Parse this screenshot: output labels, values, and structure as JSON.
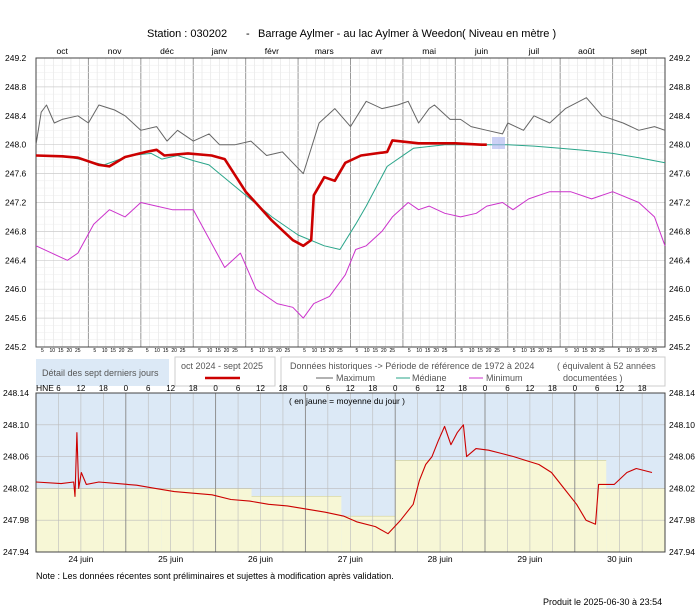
{
  "header": {
    "station": "Station : 030202",
    "dash": "-",
    "name": "Barrage Aylmer - au lac Aylmer à Weedon",
    "unit": "( Niveau en mètre )"
  },
  "legend": {
    "left_box": "Détail des sept derniers jours",
    "current_label": "oct 2024 - sept 2025",
    "historic_label": "Données historiques -> Période de référence  de 1972 à 2024",
    "equivalent_label": "( équivalent à 52 années documentées )",
    "series": [
      {
        "key": "max",
        "label": "Maximum",
        "color": "#666666"
      },
      {
        "key": "median",
        "label": "Médiane",
        "color": "#2aa58a"
      },
      {
        "key": "min",
        "label": "Minimum",
        "color": "#cc33cc"
      }
    ]
  },
  "note": "Note : Les données récentes sont préliminaires et sujettes à modification après validation.",
  "footer": "Produit le 2025-06-30 à 23:54",
  "chart_data": [
    {
      "type": "line",
      "ylim": [
        245.2,
        249.2
      ],
      "y_ticks": [
        "249.2",
        "248.8",
        "248.4",
        "248.0",
        "247.6",
        "247.2",
        "246.8",
        "246.4",
        "246.0",
        "245.6",
        "245.2"
      ],
      "months": [
        "oct",
        "nov",
        "déc",
        "janv",
        "févr",
        "mars",
        "avr",
        "mai",
        "juin",
        "juil",
        "août",
        "sept"
      ],
      "minor_day_labels": [
        "5",
        "10",
        "15",
        "20",
        "25"
      ],
      "series": [
        {
          "name": "oct 2024 - sept 2025",
          "color": "#cc0000",
          "points": [
            [
              0,
              247.85
            ],
            [
              0.5,
              247.84
            ],
            [
              0.8,
              247.82
            ],
            [
              1.2,
              247.72
            ],
            [
              1.4,
              247.7
            ],
            [
              1.7,
              247.83
            ],
            [
              2.1,
              247.9
            ],
            [
              2.3,
              247.93
            ],
            [
              2.45,
              247.85
            ],
            [
              2.9,
              247.88
            ],
            [
              3.35,
              247.85
            ],
            [
              3.6,
              247.8
            ],
            [
              4.0,
              247.35
            ],
            [
              4.5,
              246.95
            ],
            [
              4.9,
              246.68
            ],
            [
              5.1,
              246.6
            ],
            [
              5.25,
              246.68
            ],
            [
              5.3,
              247.3
            ],
            [
              5.5,
              247.55
            ],
            [
              5.7,
              247.5
            ],
            [
              5.9,
              247.75
            ],
            [
              6.2,
              247.85
            ],
            [
              6.7,
              247.9
            ],
            [
              6.8,
              248.06
            ],
            [
              7.3,
              248.02
            ],
            [
              8.0,
              248.02
            ],
            [
              8.5,
              248.0
            ],
            [
              8.6,
              248.0
            ]
          ]
        },
        {
          "name": "Maximum",
          "color": "#666666",
          "points": [
            [
              0,
              248.0
            ],
            [
              0.1,
              248.45
            ],
            [
              0.2,
              248.55
            ],
            [
              0.35,
              248.3
            ],
            [
              0.5,
              248.35
            ],
            [
              0.8,
              248.4
            ],
            [
              1.0,
              248.3
            ],
            [
              1.2,
              248.55
            ],
            [
              1.5,
              248.48
            ],
            [
              1.7,
              248.4
            ],
            [
              2.0,
              248.2
            ],
            [
              2.3,
              248.25
            ],
            [
              2.5,
              248.05
            ],
            [
              2.7,
              248.2
            ],
            [
              3.0,
              248.05
            ],
            [
              3.3,
              248.15
            ],
            [
              3.5,
              248.0
            ],
            [
              3.8,
              248.0
            ],
            [
              4.1,
              248.05
            ],
            [
              4.4,
              247.85
            ],
            [
              4.7,
              247.9
            ],
            [
              4.9,
              247.75
            ],
            [
              5.1,
              247.6
            ],
            [
              5.4,
              248.3
            ],
            [
              5.7,
              248.5
            ],
            [
              6.0,
              248.25
            ],
            [
              6.3,
              248.6
            ],
            [
              6.6,
              248.5
            ],
            [
              6.9,
              248.55
            ],
            [
              7.1,
              248.6
            ],
            [
              7.3,
              248.3
            ],
            [
              7.5,
              248.5
            ],
            [
              7.6,
              248.55
            ],
            [
              7.9,
              248.35
            ],
            [
              8.1,
              248.35
            ],
            [
              8.3,
              248.25
            ],
            [
              8.6,
              248.2
            ],
            [
              8.9,
              248.15
            ],
            [
              9.0,
              248.3
            ],
            [
              9.3,
              248.2
            ],
            [
              9.5,
              248.4
            ],
            [
              9.8,
              248.3
            ],
            [
              10.1,
              248.5
            ],
            [
              10.5,
              248.65
            ],
            [
              10.8,
              248.4
            ],
            [
              11.2,
              248.3
            ],
            [
              11.5,
              248.2
            ],
            [
              11.8,
              248.25
            ],
            [
              12.0,
              248.2
            ]
          ]
        },
        {
          "name": "Médiane",
          "color": "#2aa58a",
          "points": [
            [
              0,
              247.85
            ],
            [
              0.5,
              247.85
            ],
            [
              1.0,
              247.77
            ],
            [
              1.3,
              247.72
            ],
            [
              1.8,
              247.85
            ],
            [
              2.2,
              247.88
            ],
            [
              2.4,
              247.8
            ],
            [
              2.7,
              247.85
            ],
            [
              3.0,
              247.78
            ],
            [
              3.3,
              247.72
            ],
            [
              3.5,
              247.6
            ],
            [
              4.0,
              247.3
            ],
            [
              4.5,
              247.0
            ],
            [
              5.0,
              246.75
            ],
            [
              5.5,
              246.6
            ],
            [
              5.8,
              246.55
            ],
            [
              6.1,
              246.9
            ],
            [
              6.3,
              247.15
            ],
            [
              6.7,
              247.7
            ],
            [
              7.2,
              247.95
            ],
            [
              7.8,
              248.0
            ],
            [
              8.4,
              248.0
            ],
            [
              9.0,
              248.0
            ],
            [
              9.5,
              247.98
            ],
            [
              10.0,
              247.95
            ],
            [
              10.5,
              247.92
            ],
            [
              11.0,
              247.88
            ],
            [
              11.5,
              247.82
            ],
            [
              12.0,
              247.75
            ]
          ]
        },
        {
          "name": "Minimum",
          "color": "#cc33cc",
          "points": [
            [
              0,
              246.6
            ],
            [
              0.3,
              246.5
            ],
            [
              0.6,
              246.4
            ],
            [
              0.8,
              246.5
            ],
            [
              1.1,
              246.9
            ],
            [
              1.4,
              247.1
            ],
            [
              1.7,
              247.0
            ],
            [
              2.0,
              247.2
            ],
            [
              2.3,
              247.15
            ],
            [
              2.6,
              247.1
            ],
            [
              3.0,
              247.1
            ],
            [
              3.3,
              246.7
            ],
            [
              3.6,
              246.3
            ],
            [
              3.9,
              246.5
            ],
            [
              4.2,
              246.0
            ],
            [
              4.6,
              245.8
            ],
            [
              4.9,
              245.75
            ],
            [
              5.1,
              245.6
            ],
            [
              5.3,
              245.8
            ],
            [
              5.6,
              245.9
            ],
            [
              5.9,
              246.2
            ],
            [
              6.1,
              246.55
            ],
            [
              6.3,
              246.6
            ],
            [
              6.6,
              246.8
            ],
            [
              6.8,
              247.0
            ],
            [
              7.1,
              247.2
            ],
            [
              7.3,
              247.1
            ],
            [
              7.5,
              247.15
            ],
            [
              7.8,
              247.05
            ],
            [
              8.1,
              247.0
            ],
            [
              8.4,
              247.05
            ],
            [
              8.6,
              247.15
            ],
            [
              8.9,
              247.2
            ],
            [
              9.1,
              247.1
            ],
            [
              9.4,
              247.25
            ],
            [
              9.8,
              247.35
            ],
            [
              10.2,
              247.35
            ],
            [
              10.6,
              247.25
            ],
            [
              11.0,
              247.35
            ],
            [
              11.5,
              247.2
            ],
            [
              11.8,
              247.0
            ],
            [
              12.0,
              246.6
            ]
          ]
        }
      ]
    },
    {
      "type": "line",
      "title": "( en jaune = moyenne du jour )",
      "y_axis_label": "HNE",
      "ylim": [
        247.94,
        248.14
      ],
      "y_ticks": [
        "248.14",
        "248.10",
        "248.06",
        "248.02",
        "247.98",
        "247.94"
      ],
      "days": [
        "24 juin",
        "25 juin",
        "26 juin",
        "27 juin",
        "28 juin",
        "29 juin",
        "30 juin"
      ],
      "hour_labels": [
        "6",
        "12",
        "18"
      ],
      "daily_means": [
        248.02,
        248.02,
        248.01,
        247.985,
        248.055,
        248.055,
        248.02
      ],
      "series": [
        {
          "name": "oct 2024 - sept 2025",
          "color": "#cc0000",
          "points": [
            [
              0,
              248.028
            ],
            [
              0.4,
              248.026
            ],
            [
              0.6,
              248.028
            ],
            [
              0.62,
              248.01
            ],
            [
              0.65,
              248.09
            ],
            [
              0.68,
              248.02
            ],
            [
              0.72,
              248.04
            ],
            [
              0.8,
              248.025
            ],
            [
              1.0,
              248.028
            ],
            [
              1.3,
              248.026
            ],
            [
              1.6,
              248.024
            ],
            [
              1.9,
              248.02
            ],
            [
              2.2,
              248.016
            ],
            [
              2.5,
              248.014
            ],
            [
              2.8,
              248.012
            ],
            [
              3.1,
              248.006
            ],
            [
              3.4,
              248.004
            ],
            [
              3.7,
              248.0
            ],
            [
              4.0,
              247.998
            ],
            [
              4.3,
              247.994
            ],
            [
              4.6,
              247.99
            ],
            [
              4.9,
              247.985
            ],
            [
              5.1,
              247.978
            ],
            [
              5.4,
              247.972
            ],
            [
              5.6,
              247.963
            ],
            [
              5.8,
              247.98
            ],
            [
              6.0,
              248.0
            ],
            [
              6.1,
              248.03
            ],
            [
              6.2,
              248.05
            ],
            [
              6.3,
              248.06
            ],
            [
              6.4,
              248.08
            ],
            [
              6.5,
              248.098
            ],
            [
              6.6,
              248.075
            ],
            [
              6.7,
              248.09
            ],
            [
              6.8,
              248.1
            ],
            [
              6.85,
              248.06
            ],
            [
              7.0,
              248.07
            ],
            [
              7.2,
              248.068
            ],
            [
              7.4,
              248.064
            ],
            [
              7.6,
              248.06
            ],
            [
              7.8,
              248.055
            ],
            [
              8.0,
              248.05
            ],
            [
              8.2,
              248.04
            ],
            [
              8.4,
              248.02
            ],
            [
              8.6,
              248.0
            ],
            [
              8.75,
              247.98
            ],
            [
              8.9,
              247.975
            ],
            [
              8.95,
              248.025
            ],
            [
              9.2,
              248.025
            ],
            [
              9.4,
              248.04
            ],
            [
              9.55,
              248.045
            ],
            [
              9.8,
              248.04
            ]
          ]
        }
      ]
    }
  ]
}
